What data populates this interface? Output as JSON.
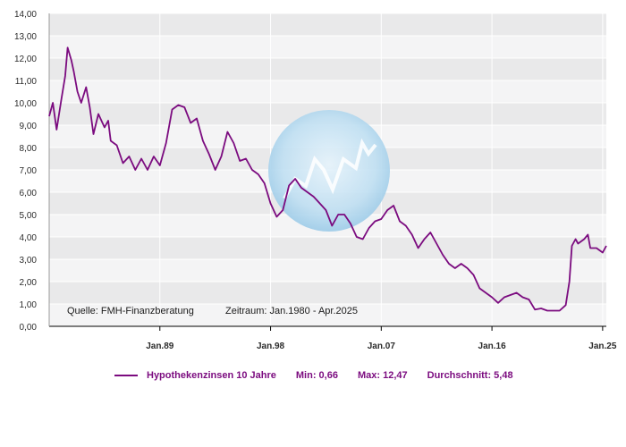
{
  "chart_data": {
    "type": "line",
    "ylim": [
      0,
      14
    ],
    "xlim": [
      1980.0,
      2025.3
    ],
    "y_ticks": [
      "0,00",
      "1,00",
      "2,00",
      "3,00",
      "4,00",
      "5,00",
      "6,00",
      "7,00",
      "8,00",
      "9,00",
      "10,00",
      "11,00",
      "12,00",
      "13,00",
      "14,00"
    ],
    "x_ticks": [
      {
        "label": "Jan.89",
        "x": 1989
      },
      {
        "label": "Jan.98",
        "x": 1998
      },
      {
        "label": "Jan.07",
        "x": 2007
      },
      {
        "label": "Jan.16",
        "x": 2016
      },
      {
        "label": "Jan.25",
        "x": 2025
      }
    ],
    "grid": true,
    "source_note": "Quelle: FMH-Finanzberatung",
    "period_note": "Zeitraum: Jan.1980 - Apr.2025",
    "series": [
      {
        "name": "Hypothekenzinsen 10 Jahre",
        "color": "#7b0b7f",
        "x": [
          1980.0,
          1980.3,
          1980.6,
          1981.0,
          1981.3,
          1981.5,
          1981.8,
          1982.0,
          1982.3,
          1982.6,
          1983.0,
          1983.3,
          1983.6,
          1984.0,
          1984.5,
          1984.8,
          1985.0,
          1985.5,
          1986.0,
          1986.5,
          1987.0,
          1987.5,
          1988.0,
          1988.5,
          1989.0,
          1989.5,
          1990.0,
          1990.5,
          1991.0,
          1991.5,
          1992.0,
          1992.5,
          1993.0,
          1993.5,
          1994.0,
          1994.5,
          1995.0,
          1995.5,
          1996.0,
          1996.5,
          1997.0,
          1997.5,
          1998.0,
          1998.5,
          1999.0,
          1999.5,
          2000.0,
          2000.5,
          2001.0,
          2001.5,
          2002.0,
          2002.5,
          2003.0,
          2003.5,
          2004.0,
          2004.5,
          2005.0,
          2005.5,
          2006.0,
          2006.5,
          2007.0,
          2007.5,
          2008.0,
          2008.5,
          2009.0,
          2009.5,
          2010.0,
          2010.5,
          2011.0,
          2011.5,
          2012.0,
          2012.5,
          2013.0,
          2013.5,
          2014.0,
          2014.5,
          2015.0,
          2015.5,
          2016.0,
          2016.5,
          2017.0,
          2017.5,
          2018.0,
          2018.5,
          2019.0,
          2019.5,
          2020.0,
          2020.5,
          2021.0,
          2021.5,
          2022.0,
          2022.3,
          2022.5,
          2022.8,
          2023.0,
          2023.5,
          2023.8,
          2024.0,
          2024.5,
          2025.0,
          2025.3
        ],
        "y": [
          9.4,
          10.0,
          8.8,
          10.2,
          11.2,
          12.47,
          11.9,
          11.4,
          10.5,
          10.0,
          10.7,
          9.8,
          8.6,
          9.5,
          8.9,
          9.2,
          8.3,
          8.1,
          7.3,
          7.6,
          7.0,
          7.5,
          7.0,
          7.6,
          7.2,
          8.2,
          9.7,
          9.9,
          9.8,
          9.1,
          9.3,
          8.3,
          7.7,
          7.0,
          7.6,
          8.7,
          8.2,
          7.4,
          7.5,
          7.0,
          6.8,
          6.4,
          5.5,
          4.9,
          5.2,
          6.3,
          6.6,
          6.2,
          6.0,
          5.8,
          5.5,
          5.2,
          4.5,
          5.0,
          5.0,
          4.6,
          4.0,
          3.9,
          4.4,
          4.7,
          4.8,
          5.2,
          5.4,
          4.7,
          4.5,
          4.1,
          3.5,
          3.9,
          4.2,
          3.7,
          3.2,
          2.8,
          2.6,
          2.8,
          2.6,
          2.3,
          1.7,
          1.5,
          1.3,
          1.05,
          1.3,
          1.4,
          1.5,
          1.3,
          1.2,
          0.75,
          0.8,
          0.7,
          0.7,
          0.7,
          0.95,
          2.0,
          3.6,
          3.9,
          3.7,
          3.9,
          4.1,
          3.5,
          3.5,
          3.3,
          3.6
        ]
      }
    ],
    "stats": {
      "min": "Min: 0,66",
      "max": "Max: 12,47",
      "avg": "Durchschnitt: 5,48"
    }
  }
}
